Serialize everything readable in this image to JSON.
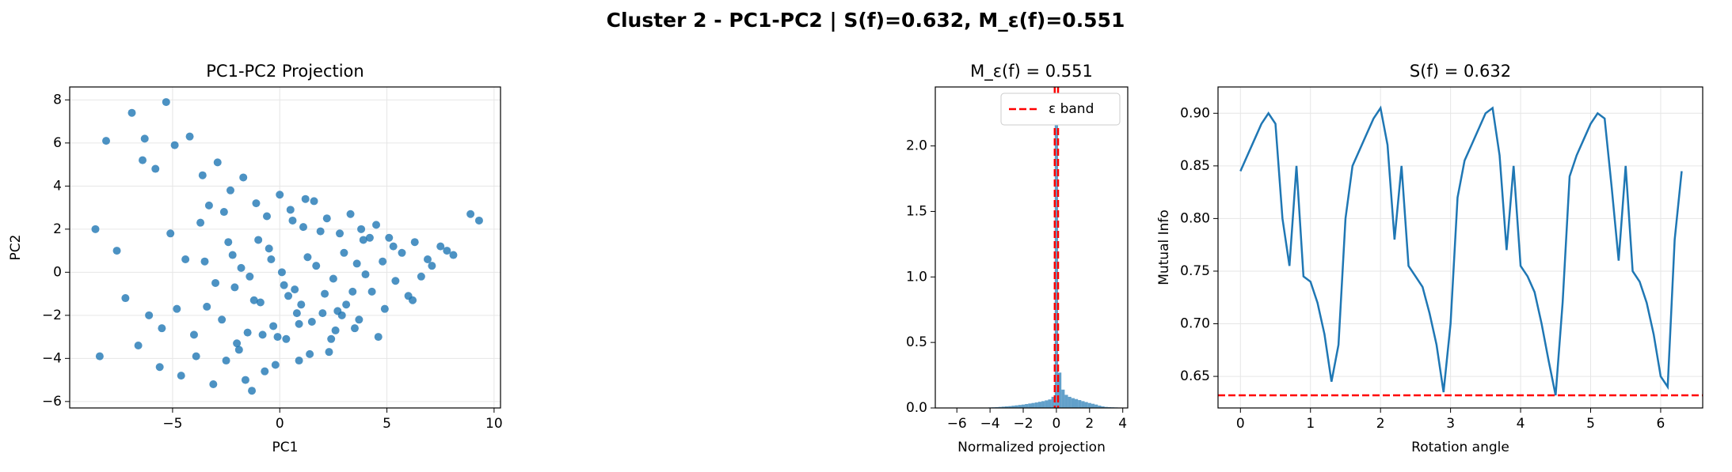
{
  "title": "Cluster 2 - PC1-PC2 | S(f)=0.632, M_ε(f)=0.551",
  "chart_data": [
    {
      "type": "scatter",
      "title": "PC1-PC2 Projection",
      "x_label": "PC1",
      "y_label": "PC2",
      "color": "#1f77b4",
      "grid": true,
      "xlim": [
        -9.8,
        10.3
      ],
      "ylim": [
        -6.3,
        8.6
      ],
      "xticks": [
        {
          "value": -5,
          "label": "−5"
        },
        0,
        5,
        10
      ],
      "yticks": [
        {
          "value": -6,
          "label": "−6"
        },
        {
          "value": -4,
          "label": "−4"
        },
        {
          "value": -2,
          "label": "−2"
        },
        0,
        2,
        4,
        6,
        8
      ],
      "x": [
        -5.3,
        -6.9,
        -6.3,
        -8.1,
        9.3,
        8.9,
        -8.6,
        -8.4,
        -7.6,
        -6.4,
        -5.8,
        -4.9,
        -4.2,
        -3.6,
        -2.9,
        -2.3,
        -1.7,
        -1.1,
        -0.6,
        0.0,
        0.5,
        1.1,
        1.6,
        2.2,
        2.8,
        3.3,
        3.9,
        4.5,
        5.1,
        5.7,
        6.3,
        6.9,
        7.5,
        8.1,
        -7.2,
        -6.6,
        -5.5,
        -4.6,
        -3.9,
        -3.1,
        -2.5,
        -1.9,
        -1.3,
        -0.8,
        -0.2,
        0.3,
        0.9,
        1.4,
        2.0,
        2.6,
        3.1,
        3.7,
        4.3,
        4.9,
        5.4,
        6.0,
        6.6,
        7.1,
        -5.1,
        -4.4,
        -3.7,
        -3.0,
        -2.4,
        -1.8,
        -1.2,
        -0.5,
        0.1,
        0.7,
        1.3,
        1.9,
        2.5,
        3.0,
        3.6,
        4.2,
        4.8,
        5.3,
        -3.4,
        -2.7,
        -2.1,
        -1.5,
        -0.9,
        -0.3,
        0.2,
        0.8,
        1.5,
        2.1,
        2.7,
        3.4,
        4.0,
        -2.2,
        -1.0,
        0.4,
        1.7,
        2.9,
        -1.4,
        0.6,
        -0.1,
        1.0,
        -3.3,
        -4.0,
        -5.6,
        -6.1,
        -3.5,
        -2.0,
        -0.7,
        0.9,
        2.3,
        3.5,
        4.6,
        6.2,
        7.8,
        -4.8,
        -2.6,
        -1.6,
        1.2,
        2.4,
        -0.4,
        3.8
      ],
      "values": [
        7.9,
        7.4,
        6.2,
        6.1,
        2.4,
        2.7,
        2.0,
        -3.9,
        1.0,
        5.2,
        4.8,
        5.9,
        6.3,
        4.5,
        5.1,
        3.8,
        4.4,
        3.2,
        2.6,
        3.6,
        2.9,
        2.1,
        3.3,
        2.5,
        1.8,
        2.7,
        1.5,
        2.2,
        1.6,
        0.9,
        1.4,
        0.6,
        1.2,
        0.8,
        -1.2,
        -3.4,
        -2.6,
        -4.8,
        -3.9,
        -5.2,
        -4.1,
        -3.6,
        -5.5,
        -2.9,
        -4.3,
        -3.1,
        -2.4,
        -3.8,
        -1.9,
        -2.7,
        -1.5,
        -2.2,
        -0.9,
        -1.7,
        -0.4,
        -1.1,
        -0.2,
        0.3,
        1.8,
        0.6,
        2.3,
        -0.5,
        1.4,
        0.2,
        -1.3,
        1.1,
        0.0,
        -0.8,
        0.7,
        1.9,
        -0.3,
        0.9,
        0.4,
        1.6,
        0.5,
        1.2,
        -1.6,
        -2.2,
        -0.7,
        -2.8,
        -1.4,
        -2.5,
        -0.6,
        -1.9,
        -2.3,
        -1.0,
        -1.8,
        -0.9,
        -0.1,
        0.8,
        1.5,
        -1.1,
        0.3,
        -2.0,
        -0.2,
        2.4,
        -3.0,
        -1.5,
        3.1,
        -2.9,
        -4.4,
        -2.0,
        0.5,
        -3.3,
        -4.6,
        -4.1,
        -3.7,
        -2.6,
        -3.0,
        -1.3,
        1.0,
        -1.7,
        2.8,
        -5.0,
        3.4,
        -3.1,
        0.6,
        2.0
      ]
    },
    {
      "type": "histogram",
      "title": "M_ε(f) = 0.551",
      "x_label": "Normalized projection",
      "color": "#1f77b4",
      "grid": false,
      "xlim": [
        -7.3,
        4.3
      ],
      "ylim": [
        0,
        2.45
      ],
      "xticks": [
        {
          "value": -6,
          "label": "−6"
        },
        {
          "value": -4,
          "label": "−4"
        },
        {
          "value": -2,
          "label": "−2"
        },
        0,
        2,
        4
      ],
      "yticks": [
        {
          "value": 0,
          "label": "0.0"
        },
        0.5,
        {
          "value": 1,
          "label": "1.0"
        },
        1.5,
        {
          "value": 2,
          "label": "2.0"
        }
      ],
      "bins": [
        -4.1,
        -3.9,
        -3.7,
        -3.5,
        -3.3,
        -3.1,
        -2.9,
        -2.7,
        -2.5,
        -2.3,
        -2.1,
        -1.9,
        -1.7,
        -1.5,
        -1.3,
        -1.1,
        -0.9,
        -0.7,
        -0.5,
        -0.3,
        -0.1,
        0.1,
        0.3,
        0.5,
        0.7,
        0.9,
        1.1,
        1.3,
        1.5,
        1.7,
        1.9,
        2.1,
        2.3,
        2.5,
        2.7,
        2.9,
        3.1,
        3.3,
        3.5,
        3.7,
        3.9
      ],
      "counts": [
        0.004,
        0.005,
        0.006,
        0.008,
        0.01,
        0.012,
        0.014,
        0.017,
        0.02,
        0.023,
        0.026,
        0.03,
        0.034,
        0.038,
        0.042,
        0.047,
        0.052,
        0.058,
        0.065,
        0.085,
        2.33,
        0.27,
        0.14,
        0.1,
        0.085,
        0.075,
        0.068,
        0.06,
        0.052,
        0.045,
        0.038,
        0.032,
        0.026,
        0.018,
        0.012,
        0.008,
        0.006,
        0.005,
        0.004,
        0.003
      ],
      "vlines": [
        -0.1,
        0.1
      ],
      "vline_color": "#ff0000",
      "vline_label": "ε band",
      "legend": "upper right"
    },
    {
      "type": "line",
      "title": "S(f) = 0.632",
      "x_label": "Rotation angle",
      "y_label": "Mutual Info",
      "color": "#1f77b4",
      "grid": true,
      "xlim": [
        -0.32,
        6.6
      ],
      "ylim": [
        0.62,
        0.925
      ],
      "xticks": [
        0,
        1,
        2,
        3,
        4,
        5,
        6
      ],
      "yticks": [
        0.65,
        {
          "value": 0.7,
          "label": "0.70"
        },
        0.75,
        {
          "value": 0.8,
          "label": "0.80"
        },
        0.85,
        {
          "value": 0.9,
          "label": "0.90"
        }
      ],
      "x": [
        0,
        0.1,
        0.2,
        0.3,
        0.4,
        0.5,
        0.6,
        0.7,
        0.8,
        0.9,
        1.0,
        1.1,
        1.2,
        1.3,
        1.4,
        1.5,
        1.6,
        1.7,
        1.8,
        1.9,
        2.0,
        2.1,
        2.2,
        2.3,
        2.4,
        2.5,
        2.6,
        2.7,
        2.8,
        2.9,
        3.0,
        3.1,
        3.2,
        3.3,
        3.4,
        3.5,
        3.6,
        3.7,
        3.8,
        3.9,
        4.0,
        4.1,
        4.2,
        4.3,
        4.4,
        4.5,
        4.6,
        4.7,
        4.8,
        4.9,
        5.0,
        5.1,
        5.2,
        5.3,
        5.4,
        5.5,
        5.6,
        5.7,
        5.8,
        5.9,
        6.0,
        6.1,
        6.2,
        6.3
      ],
      "values": [
        0.845,
        0.86,
        0.875,
        0.89,
        0.9,
        0.89,
        0.8,
        0.755,
        0.85,
        0.745,
        0.74,
        0.72,
        0.69,
        0.645,
        0.68,
        0.8,
        0.85,
        0.865,
        0.88,
        0.895,
        0.905,
        0.87,
        0.78,
        0.85,
        0.755,
        0.745,
        0.735,
        0.71,
        0.68,
        0.635,
        0.7,
        0.82,
        0.855,
        0.87,
        0.885,
        0.9,
        0.905,
        0.86,
        0.77,
        0.85,
        0.755,
        0.745,
        0.73,
        0.7,
        0.665,
        0.632,
        0.72,
        0.84,
        0.86,
        0.875,
        0.89,
        0.9,
        0.895,
        0.83,
        0.76,
        0.85,
        0.75,
        0.74,
        0.72,
        0.69,
        0.65,
        0.64,
        0.78,
        0.845
      ],
      "hline": 0.632,
      "hline_color": "#ff0000"
    }
  ]
}
